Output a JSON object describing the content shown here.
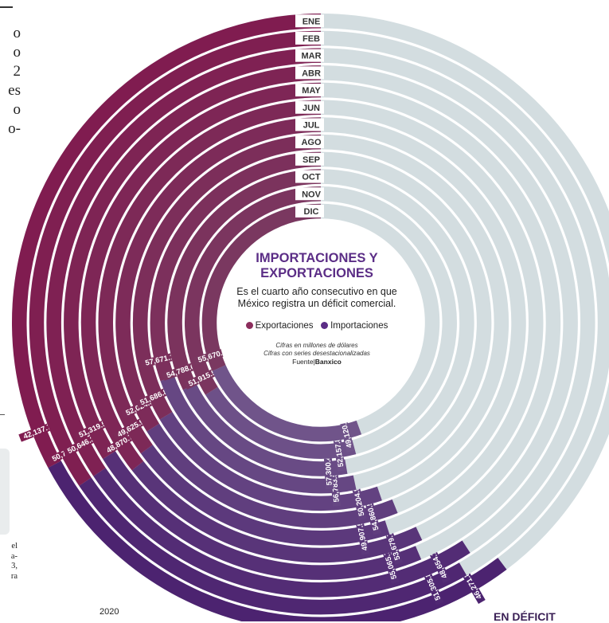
{
  "chart_data": {
    "type": "radial-bar",
    "title": "IMPORTACIONES Y EXPORTACIONES",
    "subtitle": "Es el cuarto año consecutivo en que México registra un déficit comercial.",
    "months": [
      "ENE",
      "FEB",
      "MAR",
      "ABR",
      "MAY",
      "JUN",
      "JUL",
      "AGO",
      "SEP",
      "OCT",
      "NOV",
      "DIC"
    ],
    "series": [
      {
        "name": "Exportaciones",
        "color": "#8b2d5c",
        "labels": [
          "42,137.70",
          "50,742.00",
          "50,646.30",
          "51,319.50",
          "48,870.70",
          "49,625.90",
          "52,024.50",
          "51,686.80",
          "57,671.10",
          "54,788.60",
          "51,915.50",
          "55,670.90"
        ]
      },
      {
        "name": "Importaciones",
        "color": "#5b2d86",
        "labels": [
          "46,271.80",
          "51,305.80",
          "48,654.10",
          "55,065.70",
          "53,679.70",
          "49,907.50",
          "54,860.50",
          "50,204.90",
          "56,783.50",
          "57,300.40",
          "52,157.80",
          "49,120.00"
        ]
      }
    ],
    "legend_position": "center",
    "unit_note": "Cifras en millones de dólares",
    "series_note": "Cifras con series desestacionalizadas",
    "source_label": "Fuente|",
    "source_name": "Banxico"
  },
  "page": {
    "side_text": [
      "o",
      "o",
      "2",
      "es",
      "o",
      "o-"
    ],
    "footnote_lines": [
      "el",
      "a-",
      "3,",
      "ra"
    ],
    "year": "2020",
    "next_heading": "EN DÉFICIT"
  }
}
